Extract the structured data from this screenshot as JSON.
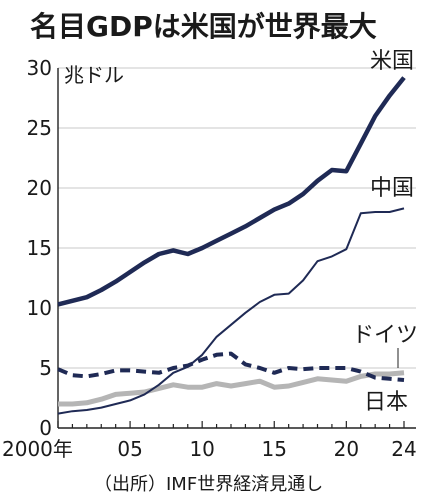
{
  "chart_data": {
    "type": "line",
    "title": "名目GDPは米国が世界最大",
    "ylabel": "兆ドル",
    "xlabel": "",
    "ylim": [
      0,
      30
    ],
    "xlim": [
      2000,
      2024
    ],
    "y_ticks": [
      0,
      5,
      10,
      15,
      20,
      25,
      30
    ],
    "x_ticks": [
      {
        "x": 2000,
        "label": "2000年"
      },
      {
        "x": 2005,
        "label": "05"
      },
      {
        "x": 2010,
        "label": "10"
      },
      {
        "x": 2015,
        "label": "15"
      },
      {
        "x": 2020,
        "label": "20"
      },
      {
        "x": 2024,
        "label": "24"
      }
    ],
    "x": [
      2000,
      2001,
      2002,
      2003,
      2004,
      2005,
      2006,
      2007,
      2008,
      2009,
      2010,
      2011,
      2012,
      2013,
      2014,
      2015,
      2016,
      2017,
      2018,
      2019,
      2020,
      2021,
      2022,
      2023,
      2024
    ],
    "series": [
      {
        "name": "米国",
        "color": "#1f2a55",
        "style": "solid-thick",
        "values": [
          10.3,
          10.6,
          10.9,
          11.5,
          12.2,
          13.0,
          13.8,
          14.5,
          14.8,
          14.5,
          15.0,
          15.6,
          16.2,
          16.8,
          17.5,
          18.2,
          18.7,
          19.5,
          20.6,
          21.5,
          21.4,
          23.7,
          26.0,
          27.7,
          29.2
        ]
      },
      {
        "name": "中国",
        "color": "#1f2a55",
        "style": "solid-thin",
        "values": [
          1.2,
          1.4,
          1.5,
          1.7,
          2.0,
          2.3,
          2.8,
          3.6,
          4.6,
          5.1,
          6.1,
          7.6,
          8.6,
          9.6,
          10.5,
          11.1,
          11.2,
          12.3,
          13.9,
          14.3,
          14.9,
          17.9,
          18.0,
          18.0,
          18.3
        ]
      },
      {
        "name": "ドイツ",
        "color": "#1f2a55",
        "style": "dashed",
        "values": [
          4.9,
          4.4,
          4.3,
          4.5,
          4.8,
          4.8,
          4.7,
          4.6,
          5.0,
          5.2,
          5.7,
          6.1,
          6.2,
          5.3,
          5.0,
          4.6,
          5.0,
          4.9,
          5.0,
          5.0,
          5.0,
          4.7,
          4.2,
          4.1,
          4.0
        ]
      },
      {
        "name": "日本",
        "color": "#b5b5b5",
        "style": "solid-gray",
        "values": [
          2.0,
          2.0,
          2.1,
          2.4,
          2.8,
          2.9,
          3.0,
          3.3,
          3.6,
          3.4,
          3.4,
          3.7,
          3.5,
          3.7,
          3.9,
          3.4,
          3.5,
          3.8,
          4.1,
          4.0,
          3.9,
          4.3,
          4.5,
          4.5,
          4.6
        ]
      }
    ],
    "note": "（出所）IMF世界経済見通し"
  }
}
